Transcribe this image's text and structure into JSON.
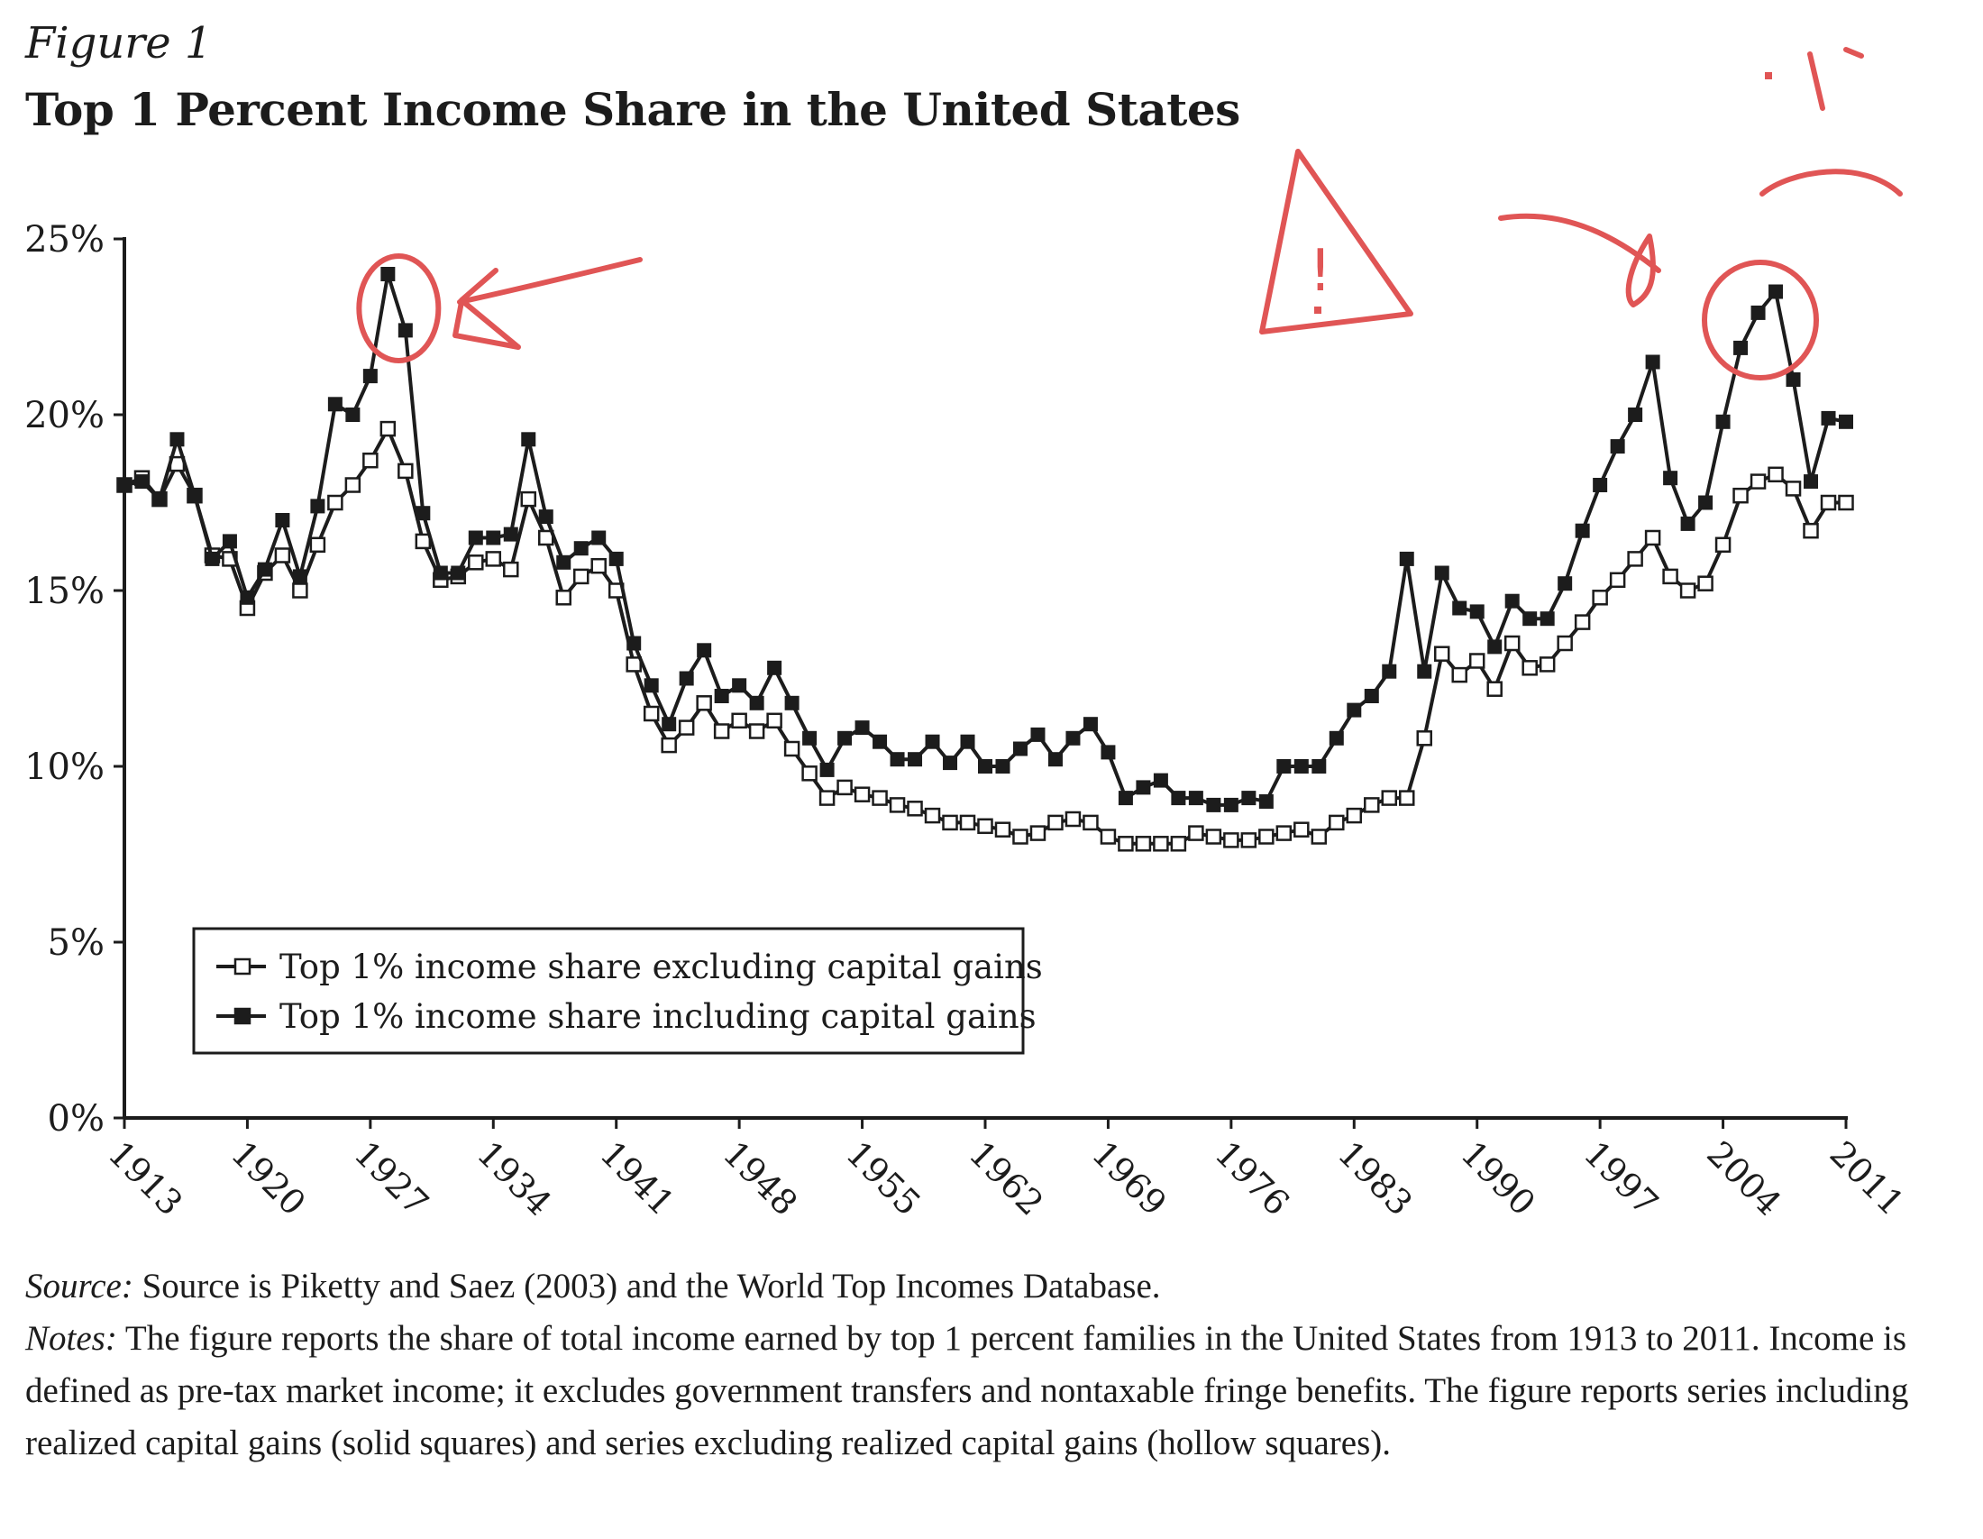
{
  "figure": {
    "label": "Figure 1",
    "title": "Top 1 Percent Income Share in the United States"
  },
  "notes": {
    "source_label": "Source:",
    "source_text": "Source is Piketty and Saez (2003) and the World Top Incomes Database.",
    "notes_label": "Notes:",
    "notes_text": "The figure reports the share of total income earned by top 1 percent families in the United States from 1913 to 2011. Income is defined as pre-tax market income; it excludes government transfers and nontaxable fringe benefits. The figure reports series including realized capital gains (solid squares) and series excluding realized capital gains (hollow squares)."
  },
  "annotation_text": "!",
  "colors": {
    "line": "#1c1c1c",
    "annotation": "#e05555"
  },
  "chart_data": {
    "type": "line",
    "title": "Top 1 Percent Income Share in the United States",
    "xlabel": "",
    "ylabel": "",
    "xlim": [
      1913,
      2011
    ],
    "ylim": [
      0,
      25
    ],
    "x_ticks": [
      "1913",
      "1920",
      "1927",
      "1934",
      "1941",
      "1948",
      "1955",
      "1962",
      "1969",
      "1976",
      "1983",
      "1990",
      "1997",
      "2004",
      "2011"
    ],
    "y_ticks": [
      "0%",
      "5%",
      "10%",
      "15%",
      "20%",
      "25%"
    ],
    "grid": false,
    "legend_position": "lower-left",
    "series": [
      {
        "name": "Top 1% income share excluding capital gains",
        "marker": "hollow-square",
        "values": [
          [
            1913,
            18.0
          ],
          [
            1914,
            18.2
          ],
          [
            1915,
            17.6
          ],
          [
            1916,
            18.6
          ],
          [
            1917,
            17.7
          ],
          [
            1918,
            16.0
          ],
          [
            1919,
            15.9
          ],
          [
            1920,
            14.5
          ],
          [
            1921,
            15.5
          ],
          [
            1922,
            16.0
          ],
          [
            1923,
            15.0
          ],
          [
            1924,
            16.3
          ],
          [
            1925,
            17.5
          ],
          [
            1926,
            18.0
          ],
          [
            1927,
            18.7
          ],
          [
            1928,
            19.6
          ],
          [
            1929,
            18.4
          ],
          [
            1930,
            16.4
          ],
          [
            1931,
            15.3
          ],
          [
            1932,
            15.4
          ],
          [
            1933,
            15.8
          ],
          [
            1934,
            15.9
          ],
          [
            1935,
            15.6
          ],
          [
            1936,
            17.6
          ],
          [
            1937,
            16.5
          ],
          [
            1938,
            14.8
          ],
          [
            1939,
            15.4
          ],
          [
            1940,
            15.7
          ],
          [
            1941,
            15.0
          ],
          [
            1942,
            12.9
          ],
          [
            1943,
            11.5
          ],
          [
            1944,
            10.6
          ],
          [
            1945,
            11.1
          ],
          [
            1946,
            11.8
          ],
          [
            1947,
            11.0
          ],
          [
            1948,
            11.3
          ],
          [
            1949,
            11.0
          ],
          [
            1950,
            11.3
          ],
          [
            1951,
            10.5
          ],
          [
            1952,
            9.8
          ],
          [
            1953,
            9.1
          ],
          [
            1954,
            9.4
          ],
          [
            1955,
            9.2
          ],
          [
            1956,
            9.1
          ],
          [
            1957,
            8.9
          ],
          [
            1958,
            8.8
          ],
          [
            1959,
            8.6
          ],
          [
            1960,
            8.4
          ],
          [
            1961,
            8.4
          ],
          [
            1962,
            8.3
          ],
          [
            1963,
            8.2
          ],
          [
            1964,
            8.0
          ],
          [
            1965,
            8.1
          ],
          [
            1966,
            8.4
          ],
          [
            1967,
            8.5
          ],
          [
            1968,
            8.4
          ],
          [
            1969,
            8.0
          ],
          [
            1970,
            7.8
          ],
          [
            1971,
            7.8
          ],
          [
            1972,
            7.8
          ],
          [
            1973,
            7.8
          ],
          [
            1974,
            8.1
          ],
          [
            1975,
            8.0
          ],
          [
            1976,
            7.9
          ],
          [
            1977,
            7.9
          ],
          [
            1978,
            8.0
          ],
          [
            1979,
            8.1
          ],
          [
            1980,
            8.2
          ],
          [
            1981,
            8.0
          ],
          [
            1982,
            8.4
          ],
          [
            1983,
            8.6
          ],
          [
            1984,
            8.9
          ],
          [
            1985,
            9.1
          ],
          [
            1986,
            9.1
          ],
          [
            1987,
            10.8
          ],
          [
            1988,
            13.2
          ],
          [
            1989,
            12.6
          ],
          [
            1990,
            13.0
          ],
          [
            1991,
            12.2
          ],
          [
            1992,
            13.5
          ],
          [
            1993,
            12.8
          ],
          [
            1994,
            12.9
          ],
          [
            1995,
            13.5
          ],
          [
            1996,
            14.1
          ],
          [
            1997,
            14.8
          ],
          [
            1998,
            15.3
          ],
          [
            1999,
            15.9
          ],
          [
            2000,
            16.5
          ],
          [
            2001,
            15.4
          ],
          [
            2002,
            15.0
          ],
          [
            2003,
            15.2
          ],
          [
            2004,
            16.3
          ],
          [
            2005,
            17.7
          ],
          [
            2006,
            18.1
          ],
          [
            2007,
            18.3
          ],
          [
            2008,
            17.9
          ],
          [
            2009,
            16.7
          ],
          [
            2010,
            17.5
          ],
          [
            2011,
            17.5
          ]
        ]
      },
      {
        "name": "Top 1% income share including capital gains",
        "marker": "solid-square",
        "values": [
          [
            1913,
            18.0
          ],
          [
            1914,
            18.1
          ],
          [
            1915,
            17.6
          ],
          [
            1916,
            19.3
          ],
          [
            1917,
            17.7
          ],
          [
            1918,
            15.9
          ],
          [
            1919,
            16.4
          ],
          [
            1920,
            14.8
          ],
          [
            1921,
            15.6
          ],
          [
            1922,
            17.0
          ],
          [
            1923,
            15.4
          ],
          [
            1924,
            17.4
          ],
          [
            1925,
            20.3
          ],
          [
            1926,
            20.0
          ],
          [
            1927,
            21.1
          ],
          [
            1928,
            24.0
          ],
          [
            1929,
            22.4
          ],
          [
            1930,
            17.2
          ],
          [
            1931,
            15.5
          ],
          [
            1932,
            15.5
          ],
          [
            1933,
            16.5
          ],
          [
            1934,
            16.5
          ],
          [
            1935,
            16.6
          ],
          [
            1936,
            19.3
          ],
          [
            1937,
            17.1
          ],
          [
            1938,
            15.8
          ],
          [
            1939,
            16.2
          ],
          [
            1940,
            16.5
          ],
          [
            1941,
            15.9
          ],
          [
            1942,
            13.5
          ],
          [
            1943,
            12.3
          ],
          [
            1944,
            11.2
          ],
          [
            1945,
            12.5
          ],
          [
            1946,
            13.3
          ],
          [
            1947,
            12.0
          ],
          [
            1948,
            12.3
          ],
          [
            1949,
            11.8
          ],
          [
            1950,
            12.8
          ],
          [
            1951,
            11.8
          ],
          [
            1952,
            10.8
          ],
          [
            1953,
            9.9
          ],
          [
            1954,
            10.8
          ],
          [
            1955,
            11.1
          ],
          [
            1956,
            10.7
          ],
          [
            1957,
            10.2
          ],
          [
            1958,
            10.2
          ],
          [
            1959,
            10.7
          ],
          [
            1960,
            10.1
          ],
          [
            1961,
            10.7
          ],
          [
            1962,
            10.0
          ],
          [
            1963,
            10.0
          ],
          [
            1964,
            10.5
          ],
          [
            1965,
            10.9
          ],
          [
            1966,
            10.2
          ],
          [
            1967,
            10.8
          ],
          [
            1968,
            11.2
          ],
          [
            1969,
            10.4
          ],
          [
            1970,
            9.1
          ],
          [
            1971,
            9.4
          ],
          [
            1972,
            9.6
          ],
          [
            1973,
            9.1
          ],
          [
            1974,
            9.1
          ],
          [
            1975,
            8.9
          ],
          [
            1976,
            8.9
          ],
          [
            1977,
            9.1
          ],
          [
            1978,
            9.0
          ],
          [
            1979,
            10.0
          ],
          [
            1980,
            10.0
          ],
          [
            1981,
            10.0
          ],
          [
            1982,
            10.8
          ],
          [
            1983,
            11.6
          ],
          [
            1984,
            12.0
          ],
          [
            1985,
            12.7
          ],
          [
            1986,
            15.9
          ],
          [
            1987,
            12.7
          ],
          [
            1988,
            15.5
          ],
          [
            1989,
            14.5
          ],
          [
            1990,
            14.4
          ],
          [
            1991,
            13.4
          ],
          [
            1992,
            14.7
          ],
          [
            1993,
            14.2
          ],
          [
            1994,
            14.2
          ],
          [
            1995,
            15.2
          ],
          [
            1996,
            16.7
          ],
          [
            1997,
            18.0
          ],
          [
            1998,
            19.1
          ],
          [
            1999,
            20.0
          ],
          [
            2000,
            21.5
          ],
          [
            2001,
            18.2
          ],
          [
            2002,
            16.9
          ],
          [
            2003,
            17.5
          ],
          [
            2004,
            19.8
          ],
          [
            2005,
            21.9
          ],
          [
            2006,
            22.9
          ],
          [
            2007,
            23.5
          ],
          [
            2008,
            21.0
          ],
          [
            2009,
            18.1
          ],
          [
            2010,
            19.9
          ],
          [
            2011,
            19.8
          ]
        ]
      }
    ]
  }
}
